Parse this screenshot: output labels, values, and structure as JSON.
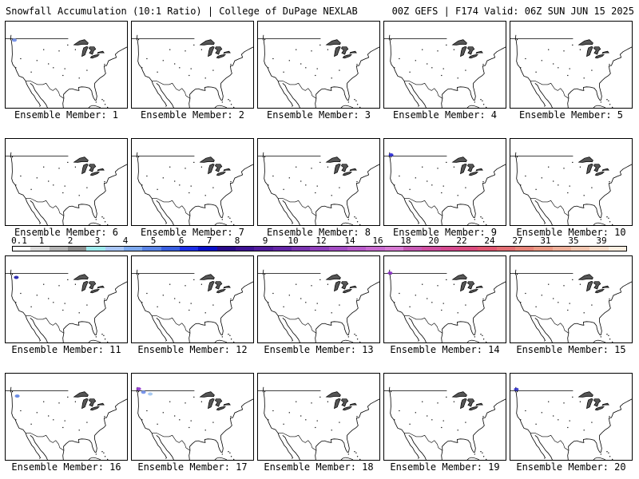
{
  "header": {
    "title": "Snowfall Accumulation (10:1 Ratio) | College of DuPage NEXLAB",
    "run_info": "00Z GEFS | F174 Valid: 06Z SUN JUN 15 2025"
  },
  "panels": [
    {
      "label": "Ensemble Member: 1",
      "snow": [
        {
          "lon": -123.0,
          "lat": 48.5,
          "color": "#6b8be8"
        }
      ]
    },
    {
      "label": "Ensemble Member: 2",
      "snow": []
    },
    {
      "label": "Ensemble Member: 3",
      "snow": []
    },
    {
      "label": "Ensemble Member: 4",
      "snow": []
    },
    {
      "label": "Ensemble Member: 5",
      "snow": []
    },
    {
      "label": "Ensemble Member: 6",
      "snow": []
    },
    {
      "label": "Ensemble Member: 7",
      "snow": []
    },
    {
      "label": "Ensemble Member: 8",
      "snow": []
    },
    {
      "label": "Ensemble Member: 9",
      "snow": [
        {
          "lon": -124.0,
          "lat": 49.5,
          "color": "#2727d6"
        }
      ]
    },
    {
      "label": "Ensemble Member: 10",
      "snow": []
    },
    {
      "label": "Ensemble Member: 11",
      "snow": [
        {
          "lon": -122.0,
          "lat": 47.5,
          "color": "#1a1aa8"
        }
      ]
    },
    {
      "label": "Ensemble Member: 12",
      "snow": []
    },
    {
      "label": "Ensemble Member: 13",
      "snow": []
    },
    {
      "label": "Ensemble Member: 14",
      "snow": [
        {
          "lon": -124.5,
          "lat": 49.2,
          "color": "#8b2fc9"
        }
      ]
    },
    {
      "label": "Ensemble Member: 15",
      "snow": []
    },
    {
      "label": "Ensemble Member: 16",
      "snow": [
        {
          "lon": -121.5,
          "lat": 47.0,
          "color": "#5b7fe0"
        }
      ]
    },
    {
      "label": "Ensemble Member: 17",
      "snow": [
        {
          "lon": -124.0,
          "lat": 49.8,
          "color": "#8b2fc9"
        },
        {
          "lon": -121.5,
          "lat": 48.5,
          "color": "#6b8be8"
        },
        {
          "lon": -118.0,
          "lat": 47.8,
          "color": "#9fc3f0"
        }
      ]
    },
    {
      "label": "Ensemble Member: 18",
      "snow": []
    },
    {
      "label": "Ensemble Member: 19",
      "snow": []
    },
    {
      "label": "Ensemble Member: 20",
      "snow": [
        {
          "lon": -124.5,
          "lat": 49.6,
          "color": "#3030c8"
        }
      ]
    }
  ],
  "colorbar": {
    "labels": [
      "0.1",
      "1",
      "2",
      "3",
      "4",
      "5",
      "6",
      "7",
      "8",
      "9",
      "10",
      "12",
      "14",
      "16",
      "18",
      "20",
      "22",
      "24",
      "27",
      "31",
      "35",
      "39"
    ],
    "colors": [
      "#ffffff",
      "#d9d9d9",
      "#b3b3b3",
      "#8c8c8c",
      "#9ee9ec",
      "#a9c6f5",
      "#7ea9ee",
      "#5b84e6",
      "#3a5fe0",
      "#1d2fe6",
      "#0a10c8",
      "#2a0a8a",
      "#3e1293",
      "#521c9c",
      "#6426a6",
      "#7a34b0",
      "#9040bb",
      "#a34dc3",
      "#b85bca",
      "#c86bcf",
      "#d67ad2",
      "#c75ab4",
      "#cf4fa0",
      "#d44a8e",
      "#da4c7e",
      "#df5872",
      "#e26e73",
      "#e68479",
      "#ea9a85",
      "#eeb09a",
      "#f2c6b0",
      "#f6dbc8",
      "#fbeee0"
    ]
  },
  "colors": {
    "map_outline": "#000000",
    "lakes_fill": "#555555",
    "background": "#ffffff"
  }
}
